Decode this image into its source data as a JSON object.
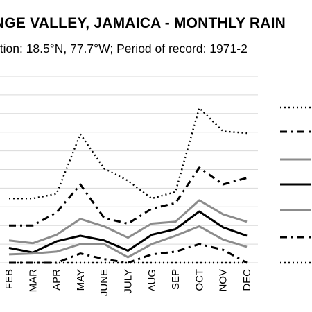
{
  "title": "NGE VALLEY, JAMAICA - MONTHLY RAIN",
  "subtitle": "ation: 18.5°N, 77.7°W; Period of record: 1971-2",
  "chart_data": {
    "type": "line",
    "categories": [
      "FEB",
      "MAR",
      "APR",
      "MAY",
      "JUNE",
      "JULY",
      "AUG",
      "SEP",
      "OCT",
      "NOV",
      "DEC"
    ],
    "ylim": [
      0,
      10
    ],
    "grid": true,
    "legend_position": "right",
    "xlabel": "",
    "ylabel": "",
    "series": [
      {
        "color": "#000000",
        "dash": "2,4",
        "width": 2.4,
        "values": [
          3.45,
          3.45,
          3.7,
          6.9,
          5.05,
          4.4,
          3.45,
          3.8,
          8.3,
          7.05,
          6.95
        ]
      },
      {
        "color": "#000000",
        "dash": "10,6,3,6",
        "width": 3,
        "values": [
          2.0,
          2.0,
          2.7,
          4.2,
          2.4,
          2.1,
          2.9,
          3.2,
          5.1,
          4.2,
          4.55
        ]
      },
      {
        "color": "#8c8c8c",
        "dash": "",
        "width": 3,
        "values": [
          1.2,
          1.05,
          1.5,
          2.35,
          1.95,
          1.35,
          2.1,
          2.2,
          3.35,
          2.6,
          2.2
        ]
      },
      {
        "color": "#000000",
        "dash": "",
        "width": 3,
        "values": [
          0.8,
          0.55,
          1.15,
          1.45,
          1.2,
          0.65,
          1.5,
          1.8,
          2.75,
          1.9,
          1.45
        ]
      },
      {
        "color": "#8c8c8c",
        "dash": "",
        "width": 3,
        "values": [
          0.45,
          0.5,
          0.6,
          1.0,
          1.0,
          0.3,
          1.0,
          1.45,
          1.95,
          1.25,
          0.85
        ]
      },
      {
        "color": "#000000",
        "dash": "10,6,3,6",
        "width": 3,
        "values": [
          0.0,
          0.0,
          0.0,
          0.5,
          0.2,
          0.0,
          0.45,
          0.6,
          1.0,
          0.7,
          0.0
        ]
      },
      {
        "color": "#000000",
        "dash": "2,4",
        "width": 2.4,
        "values": [
          0.0,
          0.0,
          0.0,
          0.0,
          0.0,
          0.0,
          0.0,
          0.0,
          0.0,
          0.0,
          0.0
        ]
      }
    ]
  }
}
